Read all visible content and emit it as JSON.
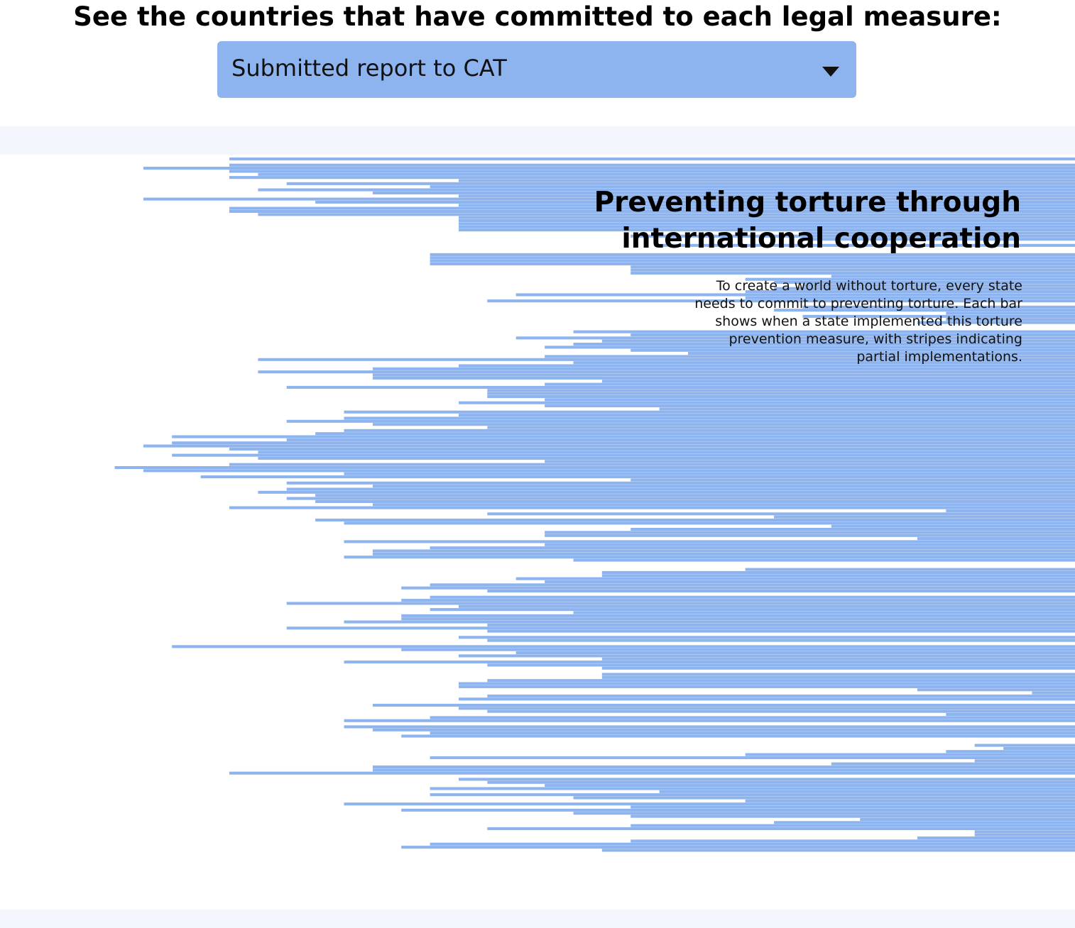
{
  "header": {
    "title": "See the countries that have committed to each legal measure:"
  },
  "measure_select": {
    "selected": "Submitted report to CAT"
  },
  "chart_data": {
    "type": "bar",
    "orientation": "horizontal",
    "title": "Preventing torture through\ninternational cooperation",
    "subtitle": "To create a world without torture, every state needs to commit to preventing torture. Each bar shows when a state implemented this torture prevention measure, with stripes indicating partial implementations.",
    "x_domain_start": 1988,
    "x_domain_end": 2025.5,
    "x_end": 2025.5,
    "bar_color": "#8db4ee",
    "state_starts": [
      1996,
      null,
      1996,
      1993,
      1996,
      1997,
      1996,
      2004,
      1998,
      2003,
      1997,
      2001,
      2004,
      1993,
      1999,
      2004,
      1996,
      1996,
      1997,
      2004,
      2004,
      2004,
      2004,
      2004,
      2016,
      2010,
      2016,
      null,
      2011,
      null,
      null,
      2003,
      2003,
      2003,
      2003,
      2010,
      2010,
      2010,
      2017,
      2014,
      2015,
      2016,
      2015,
      2014,
      2006,
      2014,
      2005,
      null,
      2016,
      2015,
      2021,
      2016,
      2021,
      2020,
      null,
      null,
      2008,
      2010,
      2006,
      2009,
      2008,
      2007,
      2010,
      2012,
      2007,
      1997,
      2008,
      2004,
      2001,
      1997,
      2001,
      2001,
      2009,
      2007,
      1998,
      2005,
      2005,
      2005,
      2007,
      2004,
      2007,
      2011,
      2000,
      2004,
      2000,
      1998,
      2001,
      2005,
      2000,
      1999,
      1994,
      1998,
      1994,
      1993,
      1996,
      1997,
      1994,
      1997,
      2007,
      1996,
      1992,
      1993,
      2000,
      1995,
      2010,
      1998,
      2001,
      1998,
      1997,
      1999,
      1998,
      1999,
      2001,
      1996,
      2021,
      2005,
      2015,
      1999,
      2000,
      2017,
      2010,
      2007,
      2007,
      2020,
      2000,
      2007,
      2003,
      2001,
      2001,
      2000,
      2008,
      null,
      null,
      2014,
      2009,
      2009,
      2006,
      2007,
      2003,
      2002,
      2005,
      null,
      2003,
      2002,
      1998,
      2004,
      2003,
      2008,
      2002,
      2002,
      2000,
      2005,
      1998,
      2005,
      null,
      2004,
      2005,
      null,
      1994,
      2002,
      2006,
      2004,
      2009,
      2000,
      2005,
      2009,
      null,
      2009,
      2009,
      2005,
      2004,
      2004,
      2020,
      2024,
      2005,
      2004,
      null,
      2001,
      2004,
      2005,
      2021,
      2003,
      2000,
      null,
      2000,
      2001,
      2003,
      2002,
      null,
      null,
      2022,
      2023,
      2021,
      2014,
      2003,
      2022,
      2017,
      2001,
      2001,
      1996,
      null,
      2004,
      2005,
      2007,
      2003,
      2011,
      2003,
      2008,
      2014,
      2000,
      2010,
      2002,
      2008,
      2010,
      2018,
      2015,
      2010,
      2005,
      2022,
      2022,
      2020,
      2010,
      2003,
      2002,
      2009
    ]
  }
}
